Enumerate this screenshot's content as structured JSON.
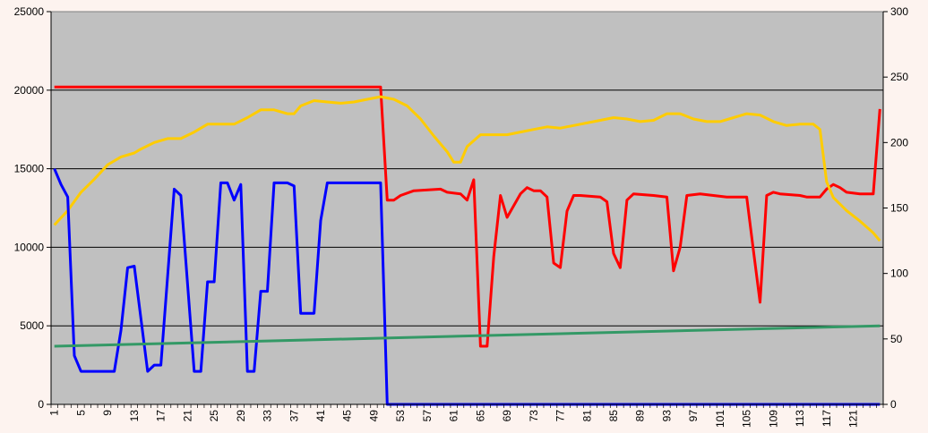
{
  "chart_data": {
    "type": "line",
    "grid": "horizontal",
    "legend": "none",
    "plot_background": "#c0c0c0",
    "page_background": "#fdf3ef",
    "x": {
      "min": 1,
      "max": 124,
      "tick_labels": [
        1,
        5,
        9,
        13,
        17,
        21,
        25,
        29,
        33,
        37,
        41,
        45,
        49,
        53,
        57,
        61,
        65,
        69,
        73,
        77,
        81,
        85,
        89,
        93,
        97,
        101,
        105,
        109,
        113,
        117,
        121
      ],
      "tick_step": 1
    },
    "y_left": {
      "min": 0,
      "max": 25000,
      "tick_labels": [
        0,
        5000,
        10000,
        15000,
        20000,
        25000
      ]
    },
    "y_right": {
      "min": 0,
      "max": 300,
      "tick_labels": [
        0,
        50,
        100,
        150,
        200,
        250,
        300
      ]
    },
    "series": [
      {
        "color": "#ff0000",
        "axis": "left",
        "points": [
          [
            1,
            20200
          ],
          [
            50,
            20200
          ],
          [
            51,
            13000
          ],
          [
            52,
            13000
          ],
          [
            53,
            13300
          ],
          [
            55,
            13600
          ],
          [
            59,
            13700
          ],
          [
            60,
            13500
          ],
          [
            62,
            13400
          ],
          [
            63,
            13000
          ],
          [
            64,
            14300
          ],
          [
            65,
            3700
          ],
          [
            66,
            3700
          ],
          [
            67,
            9400
          ],
          [
            68,
            13300
          ],
          [
            69,
            11900
          ],
          [
            71,
            13400
          ],
          [
            72,
            13800
          ],
          [
            73,
            13600
          ],
          [
            74,
            13600
          ],
          [
            75,
            13200
          ],
          [
            76,
            9000
          ],
          [
            77,
            8700
          ],
          [
            78,
            12300
          ],
          [
            79,
            13300
          ],
          [
            80,
            13300
          ],
          [
            83,
            13200
          ],
          [
            84,
            12900
          ],
          [
            85,
            9600
          ],
          [
            86,
            8700
          ],
          [
            87,
            13000
          ],
          [
            88,
            13400
          ],
          [
            91,
            13300
          ],
          [
            93,
            13200
          ],
          [
            94,
            8500
          ],
          [
            95,
            10000
          ],
          [
            96,
            13300
          ],
          [
            98,
            13400
          ],
          [
            102,
            13200
          ],
          [
            105,
            13200
          ],
          [
            106,
            9800
          ],
          [
            107,
            6500
          ],
          [
            108,
            13300
          ],
          [
            109,
            13500
          ],
          [
            110,
            13400
          ],
          [
            113,
            13300
          ],
          [
            114,
            13200
          ],
          [
            116,
            13200
          ],
          [
            117,
            13700
          ],
          [
            118,
            14000
          ],
          [
            119,
            13800
          ],
          [
            120,
            13500
          ],
          [
            122,
            13400
          ],
          [
            124,
            13400
          ],
          [
            125,
            18800
          ]
        ]
      },
      {
        "color": "#ffcc00",
        "axis": "right",
        "points": [
          [
            1,
            137
          ],
          [
            3,
            148
          ],
          [
            5,
            162
          ],
          [
            7,
            172
          ],
          [
            9,
            183
          ],
          [
            11,
            189
          ],
          [
            13,
            192
          ],
          [
            14,
            195
          ],
          [
            16,
            200
          ],
          [
            18,
            203
          ],
          [
            20,
            203
          ],
          [
            22,
            208
          ],
          [
            24,
            214
          ],
          [
            26,
            214
          ],
          [
            28,
            214
          ],
          [
            30,
            219
          ],
          [
            32,
            225
          ],
          [
            34,
            225
          ],
          [
            36,
            222
          ],
          [
            37,
            222
          ],
          [
            38,
            228
          ],
          [
            40,
            232
          ],
          [
            42,
            231
          ],
          [
            44,
            230
          ],
          [
            46,
            231
          ],
          [
            48,
            233
          ],
          [
            50,
            235
          ],
          [
            52,
            233
          ],
          [
            54,
            228
          ],
          [
            56,
            218
          ],
          [
            58,
            205
          ],
          [
            60,
            193
          ],
          [
            61,
            185
          ],
          [
            62,
            185
          ],
          [
            63,
            197
          ],
          [
            65,
            206
          ],
          [
            67,
            206
          ],
          [
            69,
            206
          ],
          [
            71,
            208
          ],
          [
            73,
            210
          ],
          [
            75,
            212
          ],
          [
            77,
            211
          ],
          [
            79,
            213
          ],
          [
            81,
            215
          ],
          [
            83,
            217
          ],
          [
            85,
            219
          ],
          [
            87,
            218
          ],
          [
            89,
            216
          ],
          [
            91,
            217
          ],
          [
            93,
            222
          ],
          [
            95,
            222
          ],
          [
            97,
            218
          ],
          [
            99,
            216
          ],
          [
            101,
            216
          ],
          [
            103,
            219
          ],
          [
            105,
            222
          ],
          [
            107,
            221
          ],
          [
            109,
            216
          ],
          [
            111,
            213
          ],
          [
            113,
            214
          ],
          [
            115,
            214
          ],
          [
            116,
            210
          ],
          [
            117,
            170
          ],
          [
            118,
            158
          ],
          [
            119,
            153
          ],
          [
            120,
            148
          ],
          [
            121,
            144
          ],
          [
            122,
            140
          ],
          [
            124,
            131
          ],
          [
            125,
            125
          ]
        ]
      },
      {
        "color": "#0000ff",
        "axis": "left",
        "points": [
          [
            1,
            15000
          ],
          [
            2,
            14000
          ],
          [
            3,
            13200
          ],
          [
            4,
            3100
          ],
          [
            5,
            2100
          ],
          [
            10,
            2100
          ],
          [
            11,
            4700
          ],
          [
            12,
            8700
          ],
          [
            13,
            8800
          ],
          [
            15,
            2100
          ],
          [
            16,
            2500
          ],
          [
            17,
            2500
          ],
          [
            19,
            13700
          ],
          [
            20,
            13300
          ],
          [
            22,
            2100
          ],
          [
            23,
            2100
          ],
          [
            24,
            7800
          ],
          [
            25,
            7800
          ],
          [
            26,
            14100
          ],
          [
            27,
            14100
          ],
          [
            28,
            13000
          ],
          [
            29,
            14000
          ],
          [
            30,
            2100
          ],
          [
            31,
            2100
          ],
          [
            32,
            7200
          ],
          [
            33,
            7200
          ],
          [
            34,
            14100
          ],
          [
            36,
            14100
          ],
          [
            37,
            13900
          ],
          [
            38,
            5800
          ],
          [
            40,
            5800
          ],
          [
            41,
            11700
          ],
          [
            42,
            14100
          ],
          [
            44,
            14100
          ],
          [
            50,
            14100
          ],
          [
            51,
            0
          ],
          [
            125,
            0
          ]
        ]
      },
      {
        "color": "#339966",
        "axis": "left",
        "points": [
          [
            1,
            3700
          ],
          [
            125,
            5000
          ]
        ]
      }
    ]
  }
}
